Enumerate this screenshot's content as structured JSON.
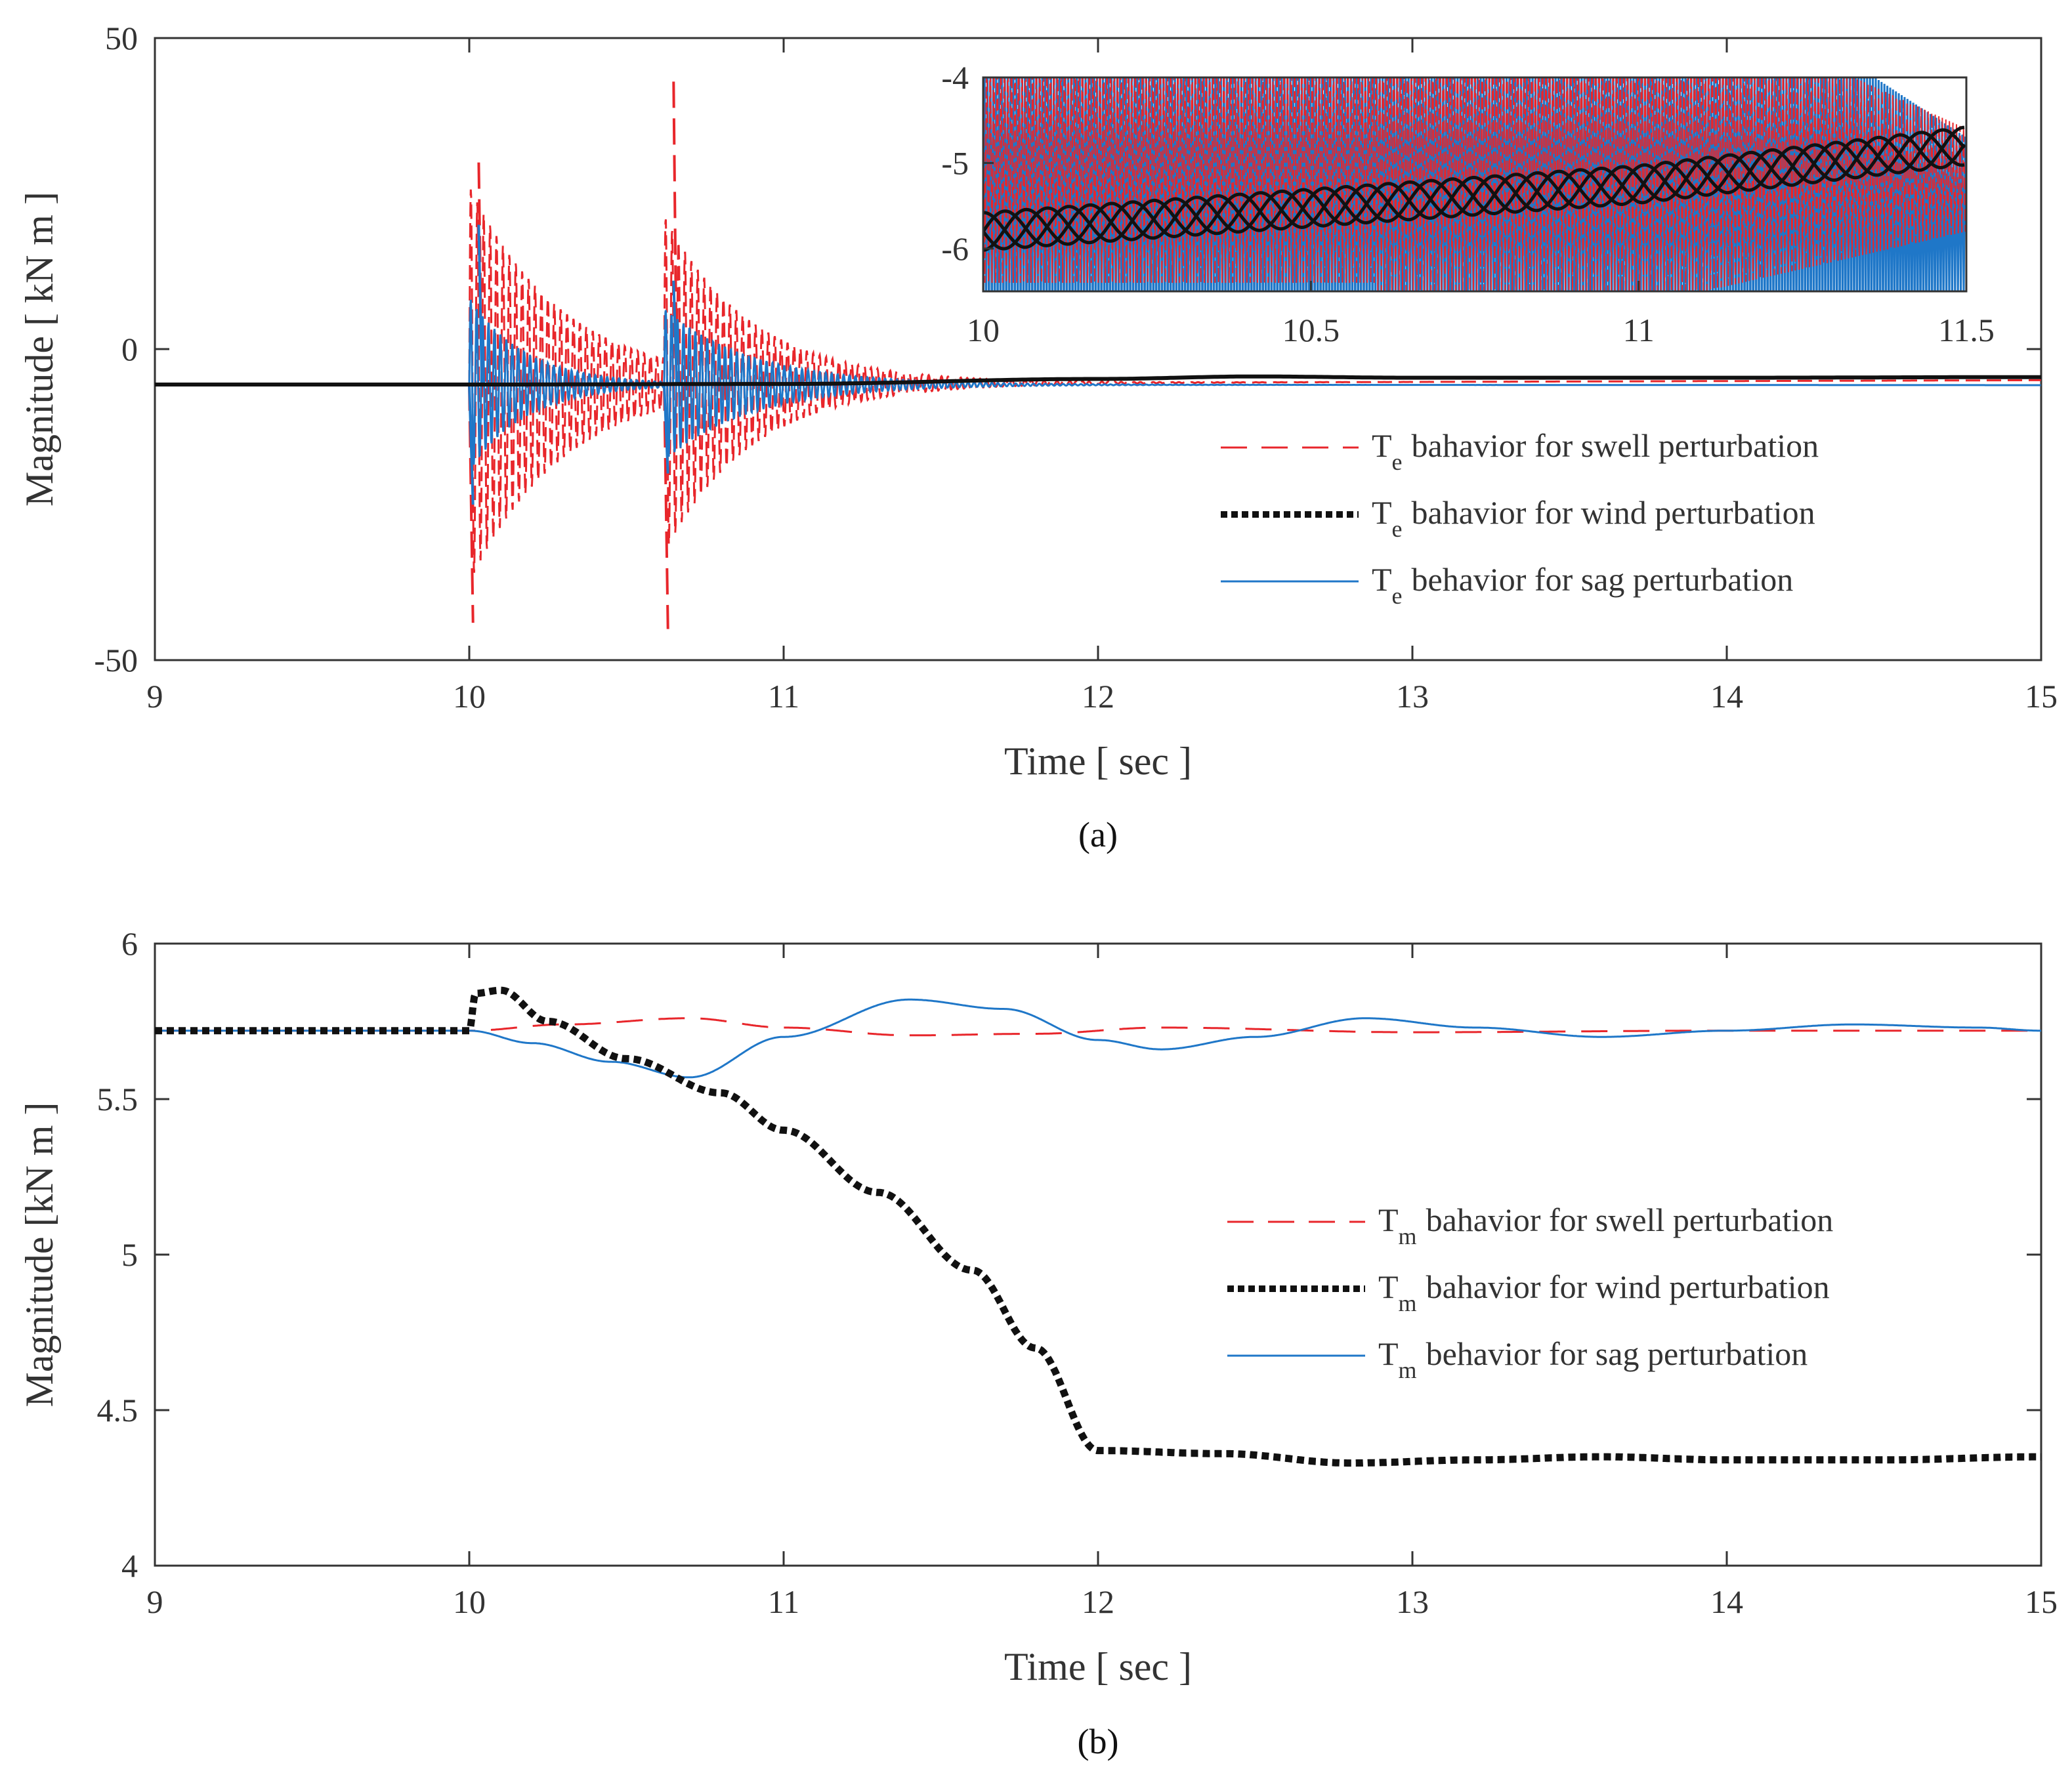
{
  "colors": {
    "swell": "#e8262b",
    "wind": "#111111",
    "sag": "#1f77c8",
    "axis": "#333333"
  },
  "chart_data": [
    {
      "id": "a",
      "type": "line",
      "caption": "(a)",
      "xlabel": "Time  [ sec ]",
      "ylabel": "Magnitude  [ kN m ]",
      "xlim": [
        9,
        15
      ],
      "ylim": [
        -50,
        50
      ],
      "xticks": [
        9,
        10,
        11,
        12,
        13,
        14,
        15
      ],
      "yticks": [
        -50,
        0,
        50
      ],
      "ytick_labels": [
        "-50",
        "0",
        "50"
      ],
      "legend": {
        "position": "right",
        "entries": [
          {
            "symbol": "T",
            "sub": "e",
            "text": "bahavior for swell perturbation"
          },
          {
            "symbol": "T",
            "sub": "e",
            "text": "bahavior for wind perturbation"
          },
          {
            "symbol": "T",
            "sub": "e",
            "text": "behavior for sag perturbation"
          }
        ]
      },
      "series": [
        {
          "name": "Te swell",
          "style": "dashed",
          "baseline": -5.7,
          "steady_end": -5.0,
          "events": [
            {
              "t": 10.0,
              "amp": 32,
              "min": -44,
              "max": 30,
              "decay": 0.3
            },
            {
              "t": 10.62,
              "amp": 30,
              "min": -45,
              "max": 43,
              "decay": 0.28
            }
          ]
        },
        {
          "name": "Te wind",
          "style": "dotted",
          "points": [
            [
              9,
              -5.7
            ],
            [
              10,
              -5.7
            ],
            [
              11,
              -5.6
            ],
            [
              12,
              -4.8
            ],
            [
              12.5,
              -4.4
            ],
            [
              13,
              -4.6
            ],
            [
              14,
              -4.6
            ],
            [
              15,
              -4.5
            ]
          ]
        },
        {
          "name": "Te sag",
          "style": "solid",
          "baseline": -5.7,
          "steady_end": -5.8,
          "events": [
            {
              "t": 10.0,
              "amp": 14,
              "min": -25,
              "max": 20,
              "decay": 0.18
            },
            {
              "t": 10.62,
              "amp": 12,
              "min": -20,
              "max": 11,
              "decay": 0.28
            }
          ]
        }
      ],
      "inset": {
        "xlim": [
          10,
          11.5
        ],
        "ylim": [
          -6.5,
          -4
        ],
        "xticks": [
          10,
          10.5,
          11,
          11.5
        ],
        "xtick_labels": [
          "10",
          "10.5",
          "11",
          "11.5"
        ],
        "yticks": [
          -6,
          -5,
          -4
        ],
        "ytick_labels": [
          "-6",
          "-5",
          "-4"
        ]
      }
    },
    {
      "id": "b",
      "type": "line",
      "caption": "(b)",
      "xlabel": "Time  [ sec ]",
      "ylabel": "Magnitude  [kN m ]",
      "xlim": [
        9,
        15
      ],
      "ylim": [
        4,
        6
      ],
      "xticks": [
        9,
        10,
        11,
        12,
        13,
        14,
        15
      ],
      "yticks": [
        4,
        4.5,
        5,
        5.5,
        6
      ],
      "ytick_labels": [
        "4",
        "4.5",
        "5",
        "5.5",
        "6"
      ],
      "legend": {
        "position": "right",
        "entries": [
          {
            "symbol": "T",
            "sub": "m",
            "text": "bahavior for swell perturbation"
          },
          {
            "symbol": "T",
            "sub": "m",
            "text": "bahavior for wind perturbation"
          },
          {
            "symbol": "T",
            "sub": "m",
            "text": "behavior for sag perturbation"
          }
        ]
      },
      "series": [
        {
          "name": "Tm swell",
          "style": "dashed",
          "points": [
            [
              9,
              5.72
            ],
            [
              10,
              5.72
            ],
            [
              10.3,
              5.74
            ],
            [
              10.7,
              5.76
            ],
            [
              11.0,
              5.73
            ],
            [
              11.4,
              5.705
            ],
            [
              11.8,
              5.71
            ],
            [
              12.2,
              5.73
            ],
            [
              13.0,
              5.715
            ],
            [
              14.0,
              5.72
            ],
            [
              15.0,
              5.72
            ]
          ]
        },
        {
          "name": "Tm wind",
          "style": "dotted",
          "points": [
            [
              9,
              5.72
            ],
            [
              10.0,
              5.72
            ],
            [
              10.02,
              5.84
            ],
            [
              10.1,
              5.85
            ],
            [
              10.25,
              5.75
            ],
            [
              10.5,
              5.63
            ],
            [
              10.8,
              5.52
            ],
            [
              11.0,
              5.4
            ],
            [
              11.3,
              5.2
            ],
            [
              11.6,
              4.95
            ],
            [
              11.8,
              4.7
            ],
            [
              12.0,
              4.37
            ],
            [
              12.4,
              4.36
            ],
            [
              12.8,
              4.33
            ],
            [
              13.2,
              4.34
            ],
            [
              13.6,
              4.35
            ],
            [
              14.0,
              4.34
            ],
            [
              14.5,
              4.34
            ],
            [
              15.0,
              4.35
            ]
          ]
        },
        {
          "name": "Tm sag",
          "style": "solid",
          "points": [
            [
              9,
              5.72
            ],
            [
              10.0,
              5.72
            ],
            [
              10.2,
              5.68
            ],
            [
              10.45,
              5.62
            ],
            [
              10.7,
              5.57
            ],
            [
              11.0,
              5.7
            ],
            [
              11.4,
              5.82
            ],
            [
              11.7,
              5.79
            ],
            [
              12.0,
              5.69
            ],
            [
              12.2,
              5.66
            ],
            [
              12.5,
              5.7
            ],
            [
              12.85,
              5.76
            ],
            [
              13.2,
              5.73
            ],
            [
              13.6,
              5.7
            ],
            [
              14.0,
              5.72
            ],
            [
              14.4,
              5.74
            ],
            [
              14.8,
              5.73
            ],
            [
              15.0,
              5.72
            ]
          ]
        }
      ]
    }
  ]
}
